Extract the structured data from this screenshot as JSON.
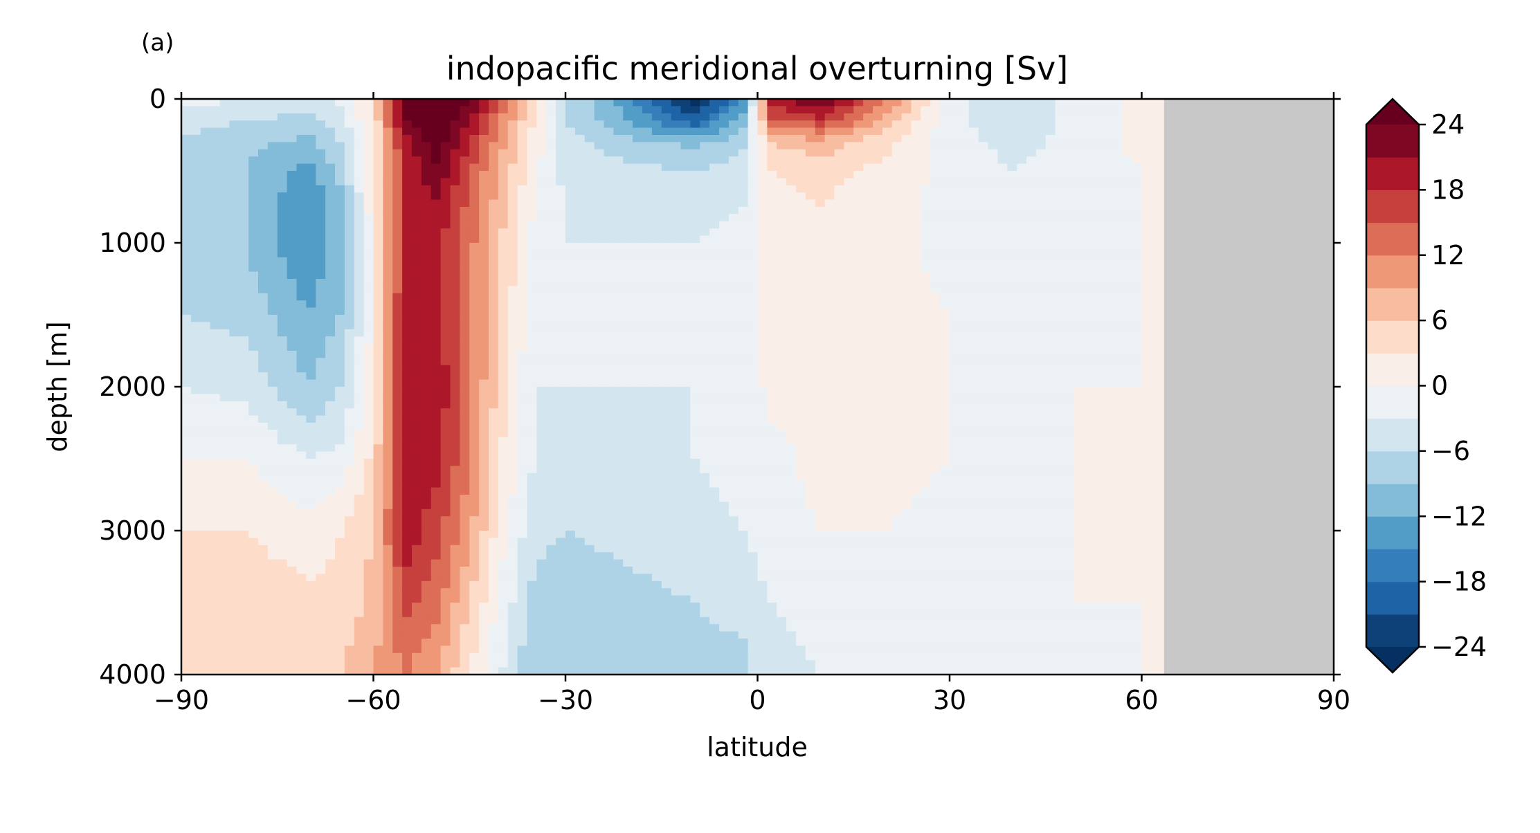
{
  "panel_label": "(a)",
  "chart_data": {
    "type": "heatmap",
    "title": "indopacific meridional overturning [Sv]",
    "xlabel": "latitude",
    "ylabel": "depth [m]",
    "xlim": [
      -90,
      90
    ],
    "ylim": [
      4000,
      0
    ],
    "x_ticks": [
      -90,
      -60,
      -30,
      0,
      30,
      60,
      90
    ],
    "x_tick_labels": [
      "−90",
      "−60",
      "−30",
      "0",
      "30",
      "60",
      "90"
    ],
    "y_ticks": [
      0,
      1000,
      2000,
      3000,
      4000
    ],
    "y_tick_labels": [
      "0",
      "1000",
      "2000",
      "3000",
      "4000"
    ],
    "y_inverted": true,
    "land_mask_lat_min": 63.5,
    "colorbar": {
      "levels": [
        -24,
        24
      ],
      "level_step": 3,
      "extend": "both",
      "ticks": [
        24,
        18,
        12,
        6,
        0,
        -6,
        -12,
        -18,
        -24
      ],
      "tick_labels": [
        "24",
        "18",
        "12",
        "6",
        "0",
        "−6",
        "−12",
        "−18",
        "−24"
      ],
      "colormap": "RdBu_r"
    },
    "grid_lat": [
      -90,
      -80,
      -70,
      -65,
      -60,
      -55,
      -50,
      -45,
      -40,
      -35,
      -30,
      -20,
      -10,
      -2,
      2,
      10,
      20,
      30,
      40,
      50,
      60
    ],
    "grid_depth": [
      0,
      150,
      300,
      500,
      750,
      1000,
      1500,
      2000,
      2500,
      3000,
      3500,
      4000
    ],
    "grid_values": [
      [
        -2,
        -3,
        -4,
        -2,
        4,
        26,
        27,
        24,
        14,
        4,
        -6,
        -14,
        -26,
        -14,
        20,
        25,
        12,
        -2,
        -5,
        -2,
        1
      ],
      [
        -4,
        -6,
        -7,
        -4,
        3,
        24,
        27,
        22,
        12,
        3,
        -6,
        -12,
        -20,
        -10,
        14,
        17,
        8,
        -2,
        -5,
        -2,
        1
      ],
      [
        -7,
        -8,
        -10,
        -6,
        2,
        20,
        26,
        18,
        10,
        2,
        -5,
        -8,
        -10,
        -7,
        6,
        8,
        4,
        -2,
        -4,
        -2,
        1
      ],
      [
        -8,
        -9,
        -13,
        -8,
        2,
        18,
        24,
        15,
        8,
        1,
        -4,
        -5,
        -6,
        -4,
        3,
        4,
        2,
        -1,
        -3,
        -2,
        0
      ],
      [
        -8,
        -9,
        -15,
        -10,
        2,
        18,
        20,
        14,
        7,
        0,
        -3,
        -4,
        -4,
        -3,
        2,
        3,
        1,
        -1,
        -2,
        -2,
        0
      ],
      [
        -8,
        -9,
        -15,
        -10,
        1,
        19,
        19,
        13,
        6,
        -1,
        -3,
        -3,
        -3,
        -2,
        2,
        2,
        1,
        -1,
        -1,
        -1,
        0
      ],
      [
        -6,
        -7,
        -12,
        -9,
        1,
        20,
        19,
        13,
        5,
        -2,
        -3,
        -3,
        -3,
        -2,
        1,
        1,
        1,
        0,
        -1,
        -1,
        0
      ],
      [
        -3,
        -4,
        -9,
        -6,
        2,
        20,
        20,
        13,
        4,
        -3,
        -3,
        -3,
        -3,
        -2,
        1,
        1,
        1,
        0,
        -1,
        0,
        0
      ],
      [
        0,
        0,
        -3,
        -2,
        4,
        20,
        19,
        12,
        3,
        -3,
        -4,
        -4,
        -3,
        -2,
        -1,
        1,
        1,
        0,
        -1,
        0,
        0
      ],
      [
        3,
        3,
        1,
        3,
        6,
        20,
        16,
        10,
        1,
        -5,
        -6,
        -5,
        -4,
        -3,
        -1,
        0,
        0,
        -1,
        -1,
        0,
        0
      ],
      [
        5,
        5,
        4,
        4,
        7,
        16,
        13,
        6,
        -1,
        -7,
        -8,
        -7,
        -6,
        -5,
        -3,
        -2,
        -1,
        -2,
        -1,
        0,
        0
      ],
      [
        6,
        6,
        5,
        6,
        9,
        12,
        9,
        3,
        -3,
        -9,
        -9,
        -8,
        -7,
        -7,
        -4,
        -3,
        -2,
        -2,
        -2,
        -1,
        0
      ]
    ]
  }
}
